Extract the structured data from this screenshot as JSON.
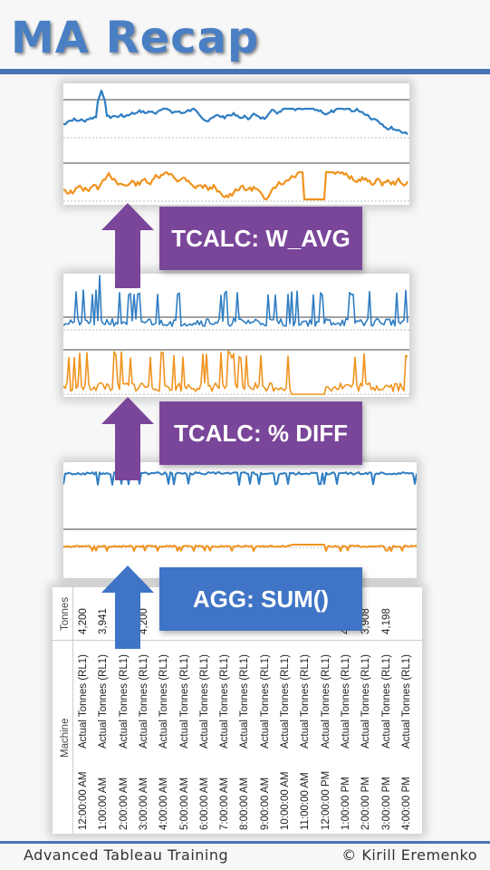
{
  "title": "MA Recap",
  "callouts": {
    "wavg": "TCALC: W_AVG",
    "pdiff": "TCALC: % DIFF",
    "agg": "AGG: SUM()"
  },
  "colors": {
    "title_blue": "#4a7fc4",
    "rule_blue": "#4a74b4",
    "callout_purple": "#7a469a",
    "callout_blue": "#3f74c6",
    "series_blue": "#2f7dc2",
    "series_orange": "#f0931f"
  },
  "table": {
    "header_machine": "Machine",
    "header_tonnes": "Tonnes",
    "rows": [
      {
        "time": "12:00:00 AM",
        "machine": "Actual Tonnes (RL1)",
        "tonnes": "4,200"
      },
      {
        "time": "1:00:00 AM",
        "machine": "Actual Tonnes (RL1)",
        "tonnes": "3,941"
      },
      {
        "time": "2:00:00 AM",
        "machine": "Actual Tonnes (RL1)",
        "tonnes": ""
      },
      {
        "time": "3:00:00 AM",
        "machine": "Actual Tonnes (RL1)",
        "tonnes": "4,200"
      },
      {
        "time": "4:00:00 AM",
        "machine": "Actual Tonnes (RL1)",
        "tonnes": ""
      },
      {
        "time": "5:00:00 AM",
        "machine": "Actual Tonnes (RL1)",
        "tonnes": ""
      },
      {
        "time": "6:00:00 AM",
        "machine": "Actual Tonnes (RL1)",
        "tonnes": ""
      },
      {
        "time": "7:00:00 AM",
        "machine": "Actual Tonnes (RL1)",
        "tonnes": ""
      },
      {
        "time": "8:00:00 AM",
        "machine": "Actual Tonnes (RL1)",
        "tonnes": ""
      },
      {
        "time": "9:00:00 AM",
        "machine": "Actual Tonnes (RL1)",
        "tonnes": ""
      },
      {
        "time": "10:00:00 AM",
        "machine": "Actual Tonnes (RL1)",
        "tonnes": ""
      },
      {
        "time": "11:00:00 AM",
        "machine": "Actual Tonnes (RL1)",
        "tonnes": ""
      },
      {
        "time": "12:00:00 PM",
        "machine": "Actual Tonnes (RL1)",
        "tonnes": ""
      },
      {
        "time": "1:00:00 PM",
        "machine": "Actual Tonnes (RL1)",
        "tonnes": "4,100"
      },
      {
        "time": "2:00:00 PM",
        "machine": "Actual Tonnes (RL1)",
        "tonnes": "3,908"
      },
      {
        "time": "3:00:00 PM",
        "machine": "Actual Tonnes (RL1)",
        "tonnes": "4,198"
      },
      {
        "time": "4:00:00 PM",
        "machine": "Actual Tonnes (RL1)",
        "tonnes": ""
      }
    ]
  },
  "footer": {
    "left": "Advanced Tableau Training",
    "right": "© Kirill Eremenko"
  }
}
